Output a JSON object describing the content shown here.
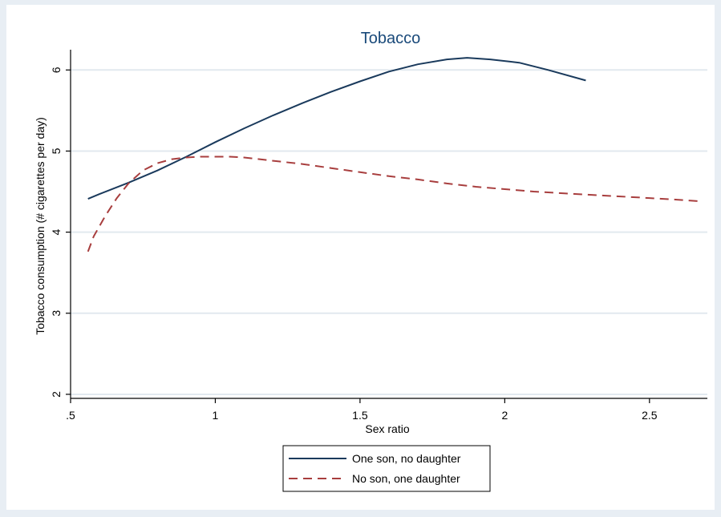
{
  "chart_data": {
    "type": "line",
    "title": "Tobacco",
    "xlabel": "Sex ratio",
    "ylabel": "Tobacco consumption (# cigarettes per day)",
    "xlim": [
      0.5,
      2.7
    ],
    "ylim": [
      1.95,
      6.25
    ],
    "x_ticks": [
      0.5,
      1,
      1.5,
      2,
      2.5
    ],
    "x_tick_labels": [
      ".5",
      "1",
      "1.5",
      "2",
      "2.5"
    ],
    "y_ticks": [
      2,
      3,
      4,
      5,
      6
    ],
    "y_tick_labels": [
      "2",
      "3",
      "4",
      "5",
      "6"
    ],
    "grid": "horizontal",
    "legend_position": "bottom",
    "colors": {
      "background": "#e8eef4",
      "plot_background": "#ffffff",
      "title": "#1a4a7a",
      "gridline": "#e2e9ef"
    },
    "series": [
      {
        "name": "One son, no daughter",
        "color": "#1a3a5c",
        "dash": "solid",
        "x": [
          0.56,
          0.6,
          0.7,
          0.8,
          0.9,
          1.0,
          1.1,
          1.2,
          1.3,
          1.4,
          1.5,
          1.6,
          1.7,
          1.8,
          1.87,
          1.95,
          2.05,
          2.15,
          2.28
        ],
        "y": [
          4.41,
          4.47,
          4.61,
          4.76,
          4.93,
          5.11,
          5.28,
          5.44,
          5.59,
          5.73,
          5.86,
          5.98,
          6.07,
          6.13,
          6.15,
          6.13,
          6.09,
          6.0,
          5.87
        ]
      },
      {
        "name": "No son, one daughter",
        "color": "#a83e3e",
        "dash": "dashed",
        "x": [
          0.56,
          0.58,
          0.62,
          0.66,
          0.7,
          0.75,
          0.8,
          0.85,
          0.9,
          0.95,
          1.0,
          1.05,
          1.1,
          1.2,
          1.3,
          1.4,
          1.5,
          1.6,
          1.7,
          1.8,
          1.9,
          2.0,
          2.1,
          2.2,
          2.3,
          2.4,
          2.5,
          2.6,
          2.68
        ],
        "y": [
          3.76,
          3.95,
          4.2,
          4.42,
          4.6,
          4.76,
          4.85,
          4.9,
          4.92,
          4.93,
          4.93,
          4.93,
          4.92,
          4.88,
          4.84,
          4.79,
          4.74,
          4.69,
          4.65,
          4.6,
          4.56,
          4.53,
          4.5,
          4.48,
          4.46,
          4.44,
          4.42,
          4.4,
          4.38
        ]
      }
    ]
  }
}
